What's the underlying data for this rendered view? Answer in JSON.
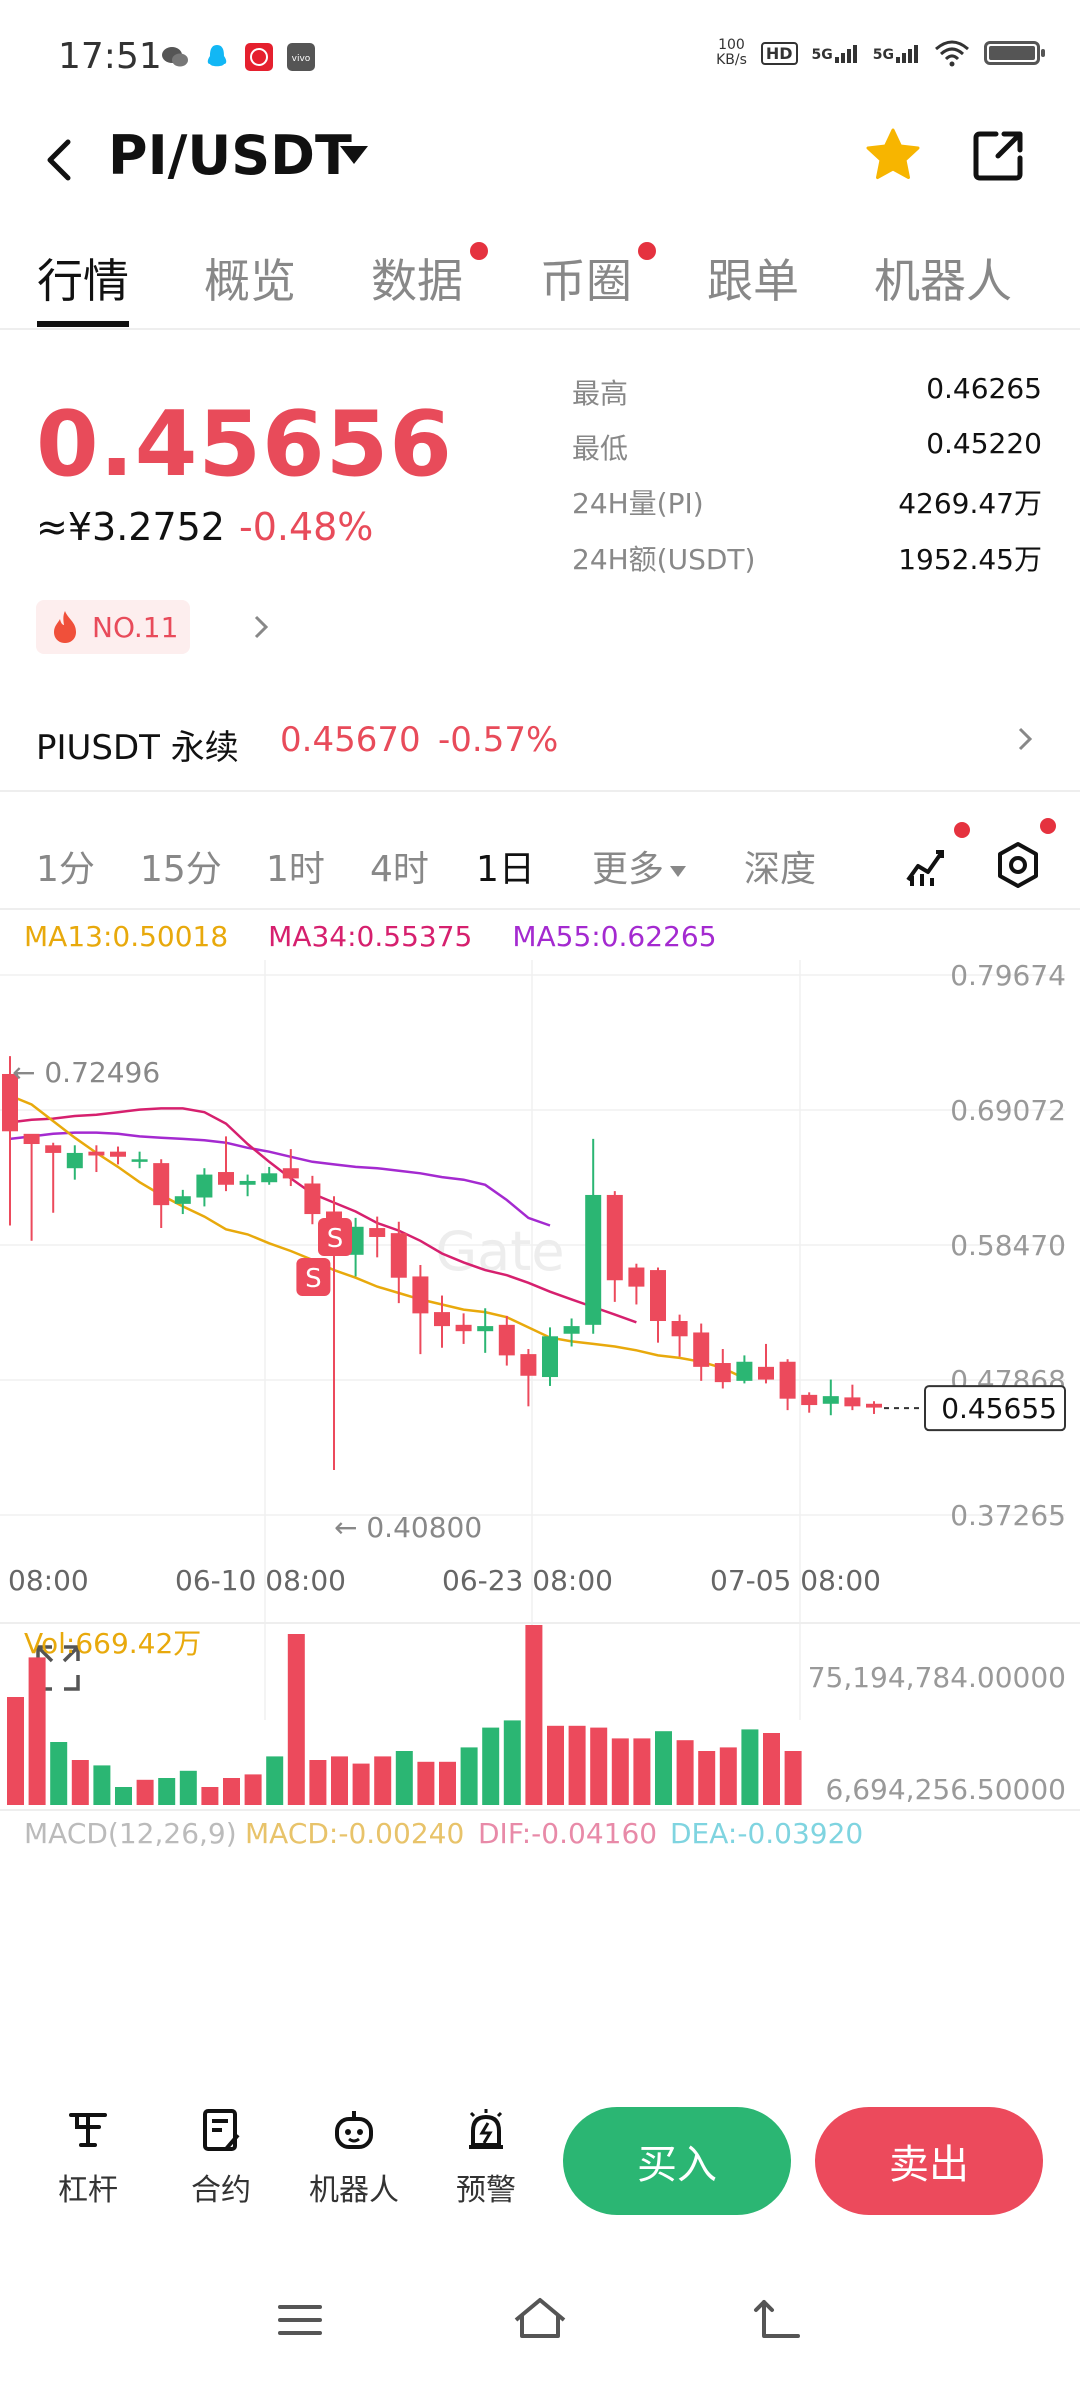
{
  "status_bar": {
    "time": "17:51",
    "net_speed_top": "100",
    "net_speed_bottom": "KB/s",
    "hd_label": "HD",
    "sim1": "5G",
    "sim2": "5G"
  },
  "header": {
    "pair": "PI/USDT"
  },
  "tabs": [
    "行情",
    "概览",
    "数据",
    "币圈",
    "跟单",
    "机器人"
  ],
  "price": {
    "last": "0.45656",
    "cny": "≈¥3.2752",
    "change": "-0.48%",
    "rank": "NO.11"
  },
  "stats": [
    {
      "label": "最高",
      "value": "0.46265"
    },
    {
      "label": "最低",
      "value": "0.45220"
    },
    {
      "label": "24H量(PI)",
      "value": "4269.47万"
    },
    {
      "label": "24H额(USDT)",
      "value": "1952.45万"
    }
  ],
  "perp": {
    "name": "PIUSDT 永续",
    "price": "0.45670",
    "change": "-0.57%"
  },
  "periods": [
    "1分",
    "15分",
    "1时",
    "4时",
    "1日",
    "更多",
    "深度"
  ],
  "ma_legend": {
    "ma13": "MA13:0.50018",
    "ma34": "MA34:0.55375",
    "ma55": "MA55:0.62265"
  },
  "colors": {
    "up": "#2bb673",
    "down": "#ec4a5c",
    "ma13": "#e8a90c",
    "ma34": "#d6206e",
    "ma55": "#a42ad0"
  },
  "chart_data": {
    "type": "candlestick",
    "y_ticks": [
      "0.79674",
      "0.69072",
      "0.58470",
      "0.47868",
      "0.37265"
    ],
    "y_range": [
      0.37265,
      0.79674
    ],
    "x_ticks": [
      "08:00",
      "06-10 08:00",
      "06-23 08:00",
      "07-05 08:00"
    ],
    "current_price": "0.45655",
    "high_marker": "← 0.72496",
    "low_marker": "← 0.40800",
    "signal_label": "S",
    "candles": [
      {
        "o": 0.719,
        "c": 0.674,
        "h": 0.733,
        "l": 0.6
      },
      {
        "o": 0.672,
        "c": 0.664,
        "h": 0.671,
        "l": 0.588
      },
      {
        "o": 0.663,
        "c": 0.657,
        "h": 0.665,
        "l": 0.61
      },
      {
        "o": 0.645,
        "c": 0.657,
        "h": 0.663,
        "l": 0.636
      },
      {
        "o": 0.658,
        "c": 0.655,
        "h": 0.663,
        "l": 0.642
      },
      {
        "o": 0.658,
        "c": 0.654,
        "h": 0.662,
        "l": 0.648
      },
      {
        "o": 0.65,
        "c": 0.652,
        "h": 0.658,
        "l": 0.645
      },
      {
        "o": 0.649,
        "c": 0.616,
        "h": 0.652,
        "l": 0.598
      },
      {
        "o": 0.617,
        "c": 0.623,
        "h": 0.628,
        "l": 0.609
      },
      {
        "o": 0.622,
        "c": 0.64,
        "h": 0.645,
        "l": 0.615
      },
      {
        "o": 0.642,
        "c": 0.632,
        "h": 0.67,
        "l": 0.627
      },
      {
        "o": 0.632,
        "c": 0.635,
        "h": 0.64,
        "l": 0.623
      },
      {
        "o": 0.634,
        "c": 0.641,
        "h": 0.646,
        "l": 0.632
      },
      {
        "o": 0.645,
        "c": 0.637,
        "h": 0.66,
        "l": 0.631
      },
      {
        "o": 0.633,
        "c": 0.609,
        "h": 0.639,
        "l": 0.601
      },
      {
        "o": 0.611,
        "c": 0.579,
        "h": 0.623,
        "l": 0.408
      },
      {
        "o": 0.577,
        "c": 0.599,
        "h": 0.606,
        "l": 0.56
      },
      {
        "o": 0.598,
        "c": 0.591,
        "h": 0.607,
        "l": 0.575
      },
      {
        "o": 0.594,
        "c": 0.559,
        "h": 0.603,
        "l": 0.539
      },
      {
        "o": 0.56,
        "c": 0.531,
        "h": 0.569,
        "l": 0.499
      },
      {
        "o": 0.532,
        "c": 0.521,
        "h": 0.545,
        "l": 0.504
      },
      {
        "o": 0.522,
        "c": 0.517,
        "h": 0.531,
        "l": 0.507
      },
      {
        "o": 0.517,
        "c": 0.521,
        "h": 0.535,
        "l": 0.5
      },
      {
        "o": 0.522,
        "c": 0.498,
        "h": 0.529,
        "l": 0.49
      },
      {
        "o": 0.499,
        "c": 0.482,
        "h": 0.503,
        "l": 0.458
      },
      {
        "o": 0.481,
        "c": 0.513,
        "h": 0.52,
        "l": 0.474
      },
      {
        "o": 0.515,
        "c": 0.521,
        "h": 0.527,
        "l": 0.505
      },
      {
        "o": 0.522,
        "c": 0.624,
        "h": 0.668,
        "l": 0.515
      },
      {
        "o": 0.624,
        "c": 0.557,
        "h": 0.627,
        "l": 0.54
      },
      {
        "o": 0.567,
        "c": 0.552,
        "h": 0.57,
        "l": 0.538
      },
      {
        "o": 0.565,
        "c": 0.525,
        "h": 0.567,
        "l": 0.508
      },
      {
        "o": 0.525,
        "c": 0.513,
        "h": 0.53,
        "l": 0.497
      },
      {
        "o": 0.516,
        "c": 0.489,
        "h": 0.523,
        "l": 0.478
      },
      {
        "o": 0.492,
        "c": 0.477,
        "h": 0.503,
        "l": 0.472
      },
      {
        "o": 0.478,
        "c": 0.493,
        "h": 0.498,
        "l": 0.476
      },
      {
        "o": 0.489,
        "c": 0.479,
        "h": 0.507,
        "l": 0.476
      },
      {
        "o": 0.493,
        "c": 0.464,
        "h": 0.495,
        "l": 0.455
      },
      {
        "o": 0.467,
        "c": 0.459,
        "h": 0.469,
        "l": 0.453
      },
      {
        "o": 0.46,
        "c": 0.466,
        "h": 0.479,
        "l": 0.451
      },
      {
        "o": 0.465,
        "c": 0.458,
        "h": 0.475,
        "l": 0.455
      },
      {
        "o": 0.46,
        "c": 0.457,
        "h": 0.462,
        "l": 0.452
      }
    ],
    "ma13": [
      0.702,
      0.695,
      0.682,
      0.669,
      0.657,
      0.646,
      0.634,
      0.624,
      0.615,
      0.607,
      0.597,
      0.593,
      0.586,
      0.58,
      0.573,
      0.565,
      0.559,
      0.552,
      0.547,
      0.542,
      0.538,
      0.534,
      0.532,
      0.528,
      0.52,
      0.512,
      0.509,
      0.507,
      0.505,
      0.502,
      0.498,
      0.496,
      0.493,
      0.488,
      0.48
    ],
    "ma34": [
      0.681,
      0.683,
      0.684,
      0.686,
      0.687,
      0.689,
      0.691,
      0.692,
      0.692,
      0.689,
      0.68,
      0.664,
      0.65,
      0.637,
      0.625,
      0.618,
      0.611,
      0.602,
      0.596,
      0.588,
      0.578,
      0.571,
      0.565,
      0.561,
      0.555,
      0.548,
      0.542,
      0.536,
      0.53,
      0.524
    ],
    "ma55": [
      0.668,
      0.67,
      0.672,
      0.673,
      0.673,
      0.672,
      0.67,
      0.669,
      0.668,
      0.667,
      0.665,
      0.661,
      0.658,
      0.654,
      0.65,
      0.648,
      0.646,
      0.645,
      0.643,
      0.641,
      0.638,
      0.636,
      0.632,
      0.62,
      0.606,
      0.6
    ],
    "volume_label": "Vol:669.42万",
    "volume_ticks": [
      "75,194,784.00000",
      "6,694,256.50000"
    ],
    "volumes": [
      60,
      82,
      35,
      25,
      22,
      10,
      14,
      15,
      19,
      10,
      15,
      17,
      27,
      95,
      25,
      27,
      23,
      27,
      30,
      24,
      24,
      32,
      43,
      47,
      100,
      44,
      44,
      43,
      37,
      37,
      41,
      36,
      30,
      32,
      42,
      40,
      30
    ],
    "macd_label": "MACD(12,26,9)",
    "macd_value": "MACD:-0.00240",
    "dif_value": "DIF:-0.04160",
    "dea_value": "DEA:-0.03920"
  },
  "bottom_bar": {
    "items": [
      "杠杆",
      "合约",
      "机器人",
      "预警"
    ],
    "buy": "买入",
    "sell": "卖出"
  }
}
